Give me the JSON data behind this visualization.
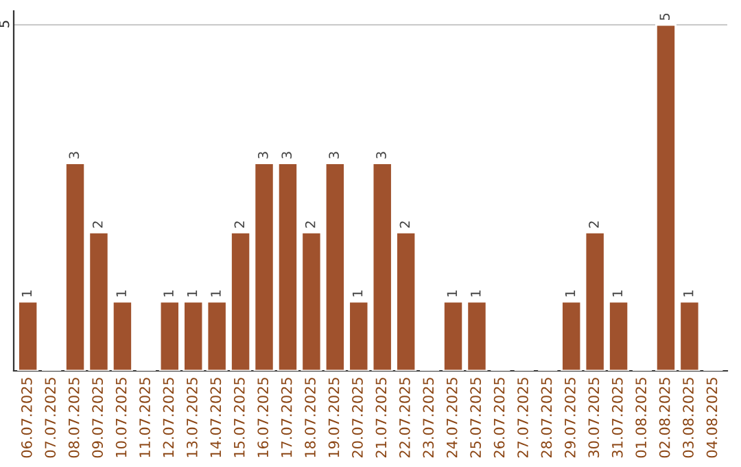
{
  "chart_data": {
    "type": "bar",
    "categories": [
      "06.07.2025",
      "07.07.2025",
      "08.07.2025",
      "09.07.2025",
      "10.07.2025",
      "11.07.2025",
      "12.07.2025",
      "13.07.2025",
      "14.07.2025",
      "15.07.2025",
      "16.07.2025",
      "17.07.2025",
      "18.07.2025",
      "19.07.2025",
      "20.07.2025",
      "21.07.2025",
      "22.07.2025",
      "23.07.2025",
      "24.07.2025",
      "25.07.2025",
      "26.07.2025",
      "27.07.2025",
      "28.07.2025",
      "29.07.2025",
      "30.07.2025",
      "31.07.2025",
      "01.08.2025",
      "02.08.2025",
      "03.08.2025",
      "04.08.2025"
    ],
    "values": [
      1,
      null,
      3,
      2,
      1,
      null,
      1,
      1,
      1,
      2,
      3,
      3,
      2,
      3,
      1,
      3,
      2,
      null,
      1,
      1,
      null,
      null,
      null,
      1,
      2,
      1,
      null,
      5,
      1,
      null
    ],
    "color": "#a0522d",
    "ylim": [
      0,
      5.2
    ],
    "yticks": [
      5
    ],
    "grid": "y",
    "data_labels": true
  }
}
